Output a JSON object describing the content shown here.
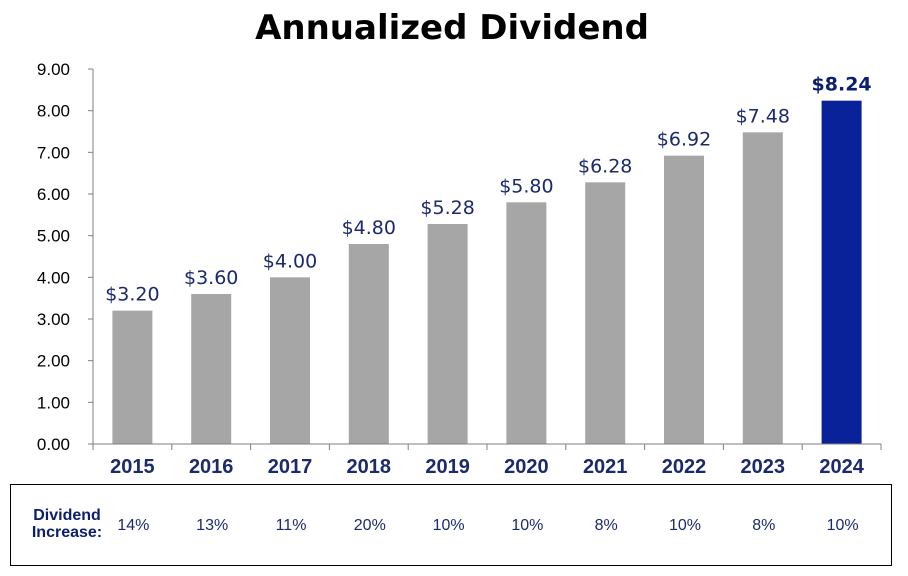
{
  "chart_data": {
    "type": "bar",
    "title": "Annualized Dividend",
    "categories": [
      "2015",
      "2016",
      "2017",
      "2018",
      "2019",
      "2020",
      "2021",
      "2022",
      "2023",
      "2024"
    ],
    "values": [
      3.2,
      3.6,
      4.0,
      4.8,
      5.28,
      5.8,
      6.28,
      6.92,
      7.48,
      8.24
    ],
    "value_labels": [
      "$3.20",
      "$3.60",
      "$4.00",
      "$4.80",
      "$5.28",
      "$5.80",
      "$6.28",
      "$6.92",
      "$7.48",
      "$8.24"
    ],
    "highlight_index": 9,
    "ylim": [
      0,
      9
    ],
    "yticks": [
      "0.00",
      "1.00",
      "2.00",
      "3.00",
      "4.00",
      "5.00",
      "6.00",
      "7.00",
      "8.00",
      "9.00"
    ],
    "grid": false,
    "colors": {
      "bar": "#a6a6a6",
      "highlight": "#0a2299",
      "label_text": "#1a2a6c"
    }
  },
  "increase_table": {
    "label_line1": "Dividend",
    "label_line2": "Increase:",
    "values": [
      "14%",
      "13%",
      "11%",
      "20%",
      "10%",
      "10%",
      "8%",
      "10%",
      "8%",
      "10%"
    ]
  }
}
